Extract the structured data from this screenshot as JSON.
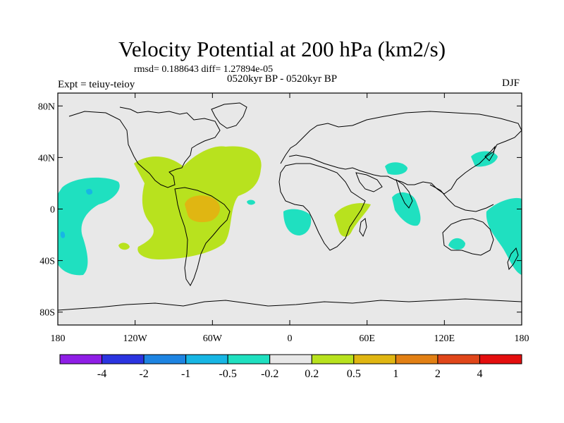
{
  "title": "Velocity Potential at 200 hPa (km2/s)",
  "stats": "rmsd= 0.188643 diff= 1.27894e-05",
  "period": "0520kyr BP - 0520kyr BP",
  "experiment": "Expt = teiuy-teioy",
  "season": "DJF",
  "lat_ticks": [
    {
      "value": 80,
      "label": "80N"
    },
    {
      "value": 40,
      "label": "40N"
    },
    {
      "value": 0,
      "label": "0"
    },
    {
      "value": -40,
      "label": "40S"
    },
    {
      "value": -80,
      "label": "80S"
    }
  ],
  "lon_ticks": [
    {
      "value": -180,
      "label": "180"
    },
    {
      "value": -120,
      "label": "120W"
    },
    {
      "value": -60,
      "label": "60W"
    },
    {
      "value": 0,
      "label": "0"
    },
    {
      "value": 60,
      "label": "60E"
    },
    {
      "value": 120,
      "label": "120E"
    },
    {
      "value": 180,
      "label": "180"
    }
  ],
  "colorbar": {
    "colors": [
      "#8f1ee6",
      "#2b34e0",
      "#1d84e2",
      "#17b6e4",
      "#1fe0c0",
      "#e8e8e8",
      "#b8e21e",
      "#e0b612",
      "#e28014",
      "#e0461a",
      "#e40e0e"
    ],
    "labels": [
      "-4",
      "-2",
      "-1",
      "-0.5",
      "-0.2",
      "0.2",
      "0.5",
      "1",
      "2",
      "4"
    ]
  },
  "colors": {
    "background": "#e8e8e8",
    "coast": "#000000",
    "positive": "#b8e21e",
    "strong_positive": "#e0b612",
    "negative": "#1fe0c0",
    "strong_negative": "#17b6e4"
  }
}
